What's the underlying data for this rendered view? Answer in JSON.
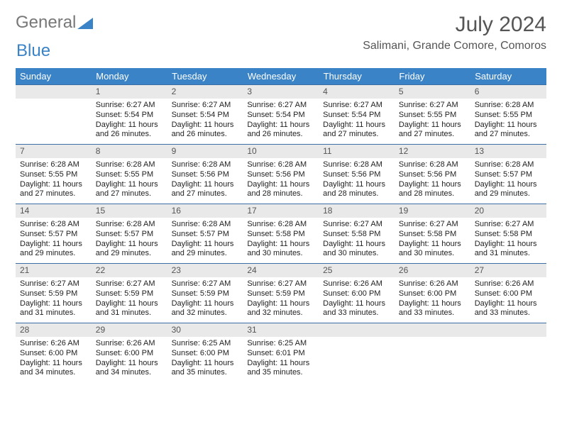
{
  "logo": {
    "word1": "General",
    "word2": "Blue",
    "color1": "#777777",
    "color2": "#3a83c6"
  },
  "title": "July 2024",
  "location": "Salimani, Grande Comore, Comoros",
  "header": {
    "bg": "#3a83c6",
    "fg": "#ffffff",
    "days": [
      "Sunday",
      "Monday",
      "Tuesday",
      "Wednesday",
      "Thursday",
      "Friday",
      "Saturday"
    ]
  },
  "cell": {
    "daynum_bg": "#e9e9e9",
    "daynum_border": "#3a6ea5",
    "text_color": "#222222",
    "fontsize_body": 11,
    "fontsize_daynum": 12
  },
  "weeks": [
    [
      null,
      {
        "n": "1",
        "sr": "6:27 AM",
        "ss": "5:54 PM",
        "dl": "11 hours and 26 minutes."
      },
      {
        "n": "2",
        "sr": "6:27 AM",
        "ss": "5:54 PM",
        "dl": "11 hours and 26 minutes."
      },
      {
        "n": "3",
        "sr": "6:27 AM",
        "ss": "5:54 PM",
        "dl": "11 hours and 26 minutes."
      },
      {
        "n": "4",
        "sr": "6:27 AM",
        "ss": "5:54 PM",
        "dl": "11 hours and 27 minutes."
      },
      {
        "n": "5",
        "sr": "6:27 AM",
        "ss": "5:55 PM",
        "dl": "11 hours and 27 minutes."
      },
      {
        "n": "6",
        "sr": "6:28 AM",
        "ss": "5:55 PM",
        "dl": "11 hours and 27 minutes."
      }
    ],
    [
      {
        "n": "7",
        "sr": "6:28 AM",
        "ss": "5:55 PM",
        "dl": "11 hours and 27 minutes."
      },
      {
        "n": "8",
        "sr": "6:28 AM",
        "ss": "5:55 PM",
        "dl": "11 hours and 27 minutes."
      },
      {
        "n": "9",
        "sr": "6:28 AM",
        "ss": "5:56 PM",
        "dl": "11 hours and 27 minutes."
      },
      {
        "n": "10",
        "sr": "6:28 AM",
        "ss": "5:56 PM",
        "dl": "11 hours and 28 minutes."
      },
      {
        "n": "11",
        "sr": "6:28 AM",
        "ss": "5:56 PM",
        "dl": "11 hours and 28 minutes."
      },
      {
        "n": "12",
        "sr": "6:28 AM",
        "ss": "5:56 PM",
        "dl": "11 hours and 28 minutes."
      },
      {
        "n": "13",
        "sr": "6:28 AM",
        "ss": "5:57 PM",
        "dl": "11 hours and 29 minutes."
      }
    ],
    [
      {
        "n": "14",
        "sr": "6:28 AM",
        "ss": "5:57 PM",
        "dl": "11 hours and 29 minutes."
      },
      {
        "n": "15",
        "sr": "6:28 AM",
        "ss": "5:57 PM",
        "dl": "11 hours and 29 minutes."
      },
      {
        "n": "16",
        "sr": "6:28 AM",
        "ss": "5:57 PM",
        "dl": "11 hours and 29 minutes."
      },
      {
        "n": "17",
        "sr": "6:28 AM",
        "ss": "5:58 PM",
        "dl": "11 hours and 30 minutes."
      },
      {
        "n": "18",
        "sr": "6:27 AM",
        "ss": "5:58 PM",
        "dl": "11 hours and 30 minutes."
      },
      {
        "n": "19",
        "sr": "6:27 AM",
        "ss": "5:58 PM",
        "dl": "11 hours and 30 minutes."
      },
      {
        "n": "20",
        "sr": "6:27 AM",
        "ss": "5:58 PM",
        "dl": "11 hours and 31 minutes."
      }
    ],
    [
      {
        "n": "21",
        "sr": "6:27 AM",
        "ss": "5:59 PM",
        "dl": "11 hours and 31 minutes."
      },
      {
        "n": "22",
        "sr": "6:27 AM",
        "ss": "5:59 PM",
        "dl": "11 hours and 31 minutes."
      },
      {
        "n": "23",
        "sr": "6:27 AM",
        "ss": "5:59 PM",
        "dl": "11 hours and 32 minutes."
      },
      {
        "n": "24",
        "sr": "6:27 AM",
        "ss": "5:59 PM",
        "dl": "11 hours and 32 minutes."
      },
      {
        "n": "25",
        "sr": "6:26 AM",
        "ss": "6:00 PM",
        "dl": "11 hours and 33 minutes."
      },
      {
        "n": "26",
        "sr": "6:26 AM",
        "ss": "6:00 PM",
        "dl": "11 hours and 33 minutes."
      },
      {
        "n": "27",
        "sr": "6:26 AM",
        "ss": "6:00 PM",
        "dl": "11 hours and 33 minutes."
      }
    ],
    [
      {
        "n": "28",
        "sr": "6:26 AM",
        "ss": "6:00 PM",
        "dl": "11 hours and 34 minutes."
      },
      {
        "n": "29",
        "sr": "6:26 AM",
        "ss": "6:00 PM",
        "dl": "11 hours and 34 minutes."
      },
      {
        "n": "30",
        "sr": "6:25 AM",
        "ss": "6:00 PM",
        "dl": "11 hours and 35 minutes."
      },
      {
        "n": "31",
        "sr": "6:25 AM",
        "ss": "6:01 PM",
        "dl": "11 hours and 35 minutes."
      },
      null,
      null,
      null
    ]
  ],
  "labels": {
    "sunrise": "Sunrise:",
    "sunset": "Sunset:",
    "daylight": "Daylight:"
  }
}
